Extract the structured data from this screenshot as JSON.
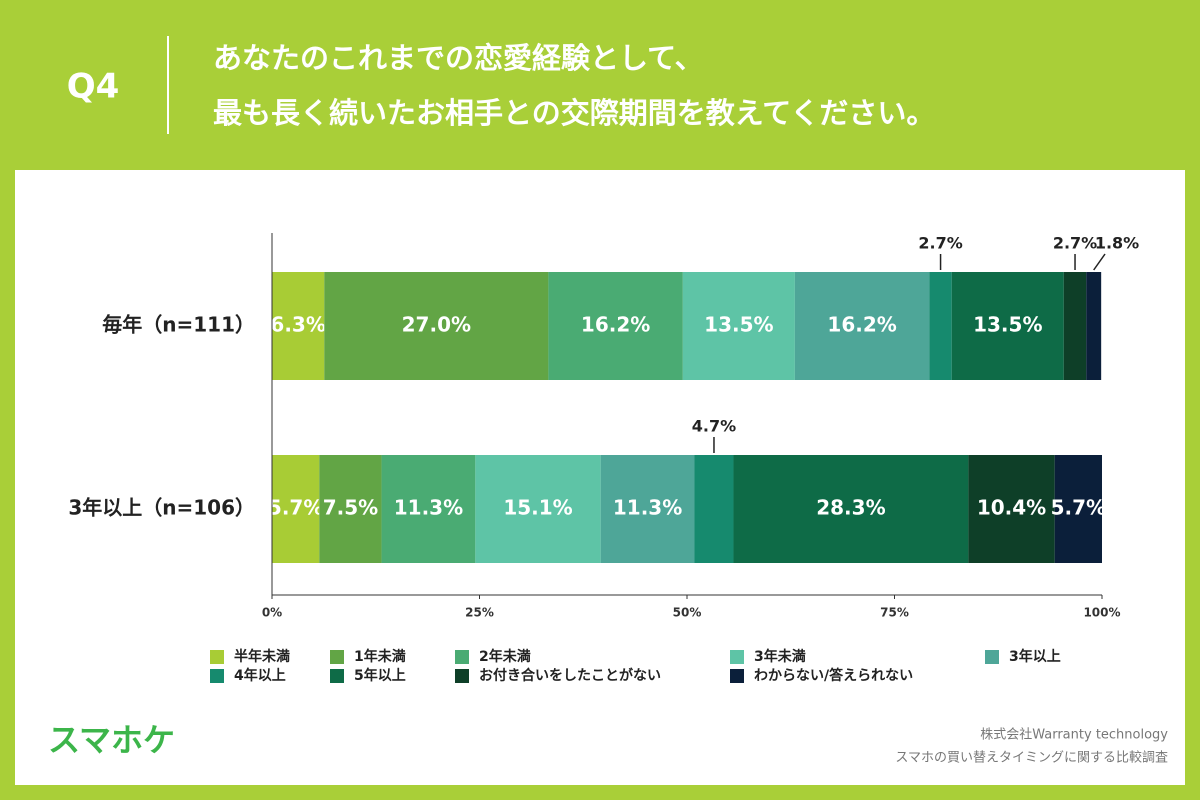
{
  "chart_data": {
    "type": "bar",
    "orientation": "horizontal",
    "stacked": true,
    "question": "Q4",
    "title": [
      "あなたのこれまでの恋愛経験として、",
      "最も長く続いたお相手との交際期間を教えてください。"
    ],
    "categories": [
      "毎年（n=111）",
      "3年以上（n=106）"
    ],
    "series": [
      {
        "name": "半年未満",
        "color": "#a8cc35",
        "values": [
          6.3,
          5.7
        ],
        "value_labels": [
          "6.3%",
          "5.7%"
        ]
      },
      {
        "name": "1年未満",
        "color": "#62a545",
        "values": [
          27.0,
          7.5
        ],
        "value_labels": [
          "27.0%",
          "7.5%"
        ]
      },
      {
        "name": "2年未満",
        "color": "#4aab73",
        "values": [
          16.2,
          11.3
        ],
        "value_labels": [
          "16.2%",
          "11.3%"
        ]
      },
      {
        "name": "3年未満",
        "color": "#5ec4a6",
        "values": [
          13.5,
          15.1
        ],
        "value_labels": [
          "13.5%",
          "15.1%"
        ]
      },
      {
        "name": "3年以上",
        "color": "#4ea698",
        "values": [
          16.2,
          11.3
        ],
        "value_labels": [
          "16.2%",
          "11.3%"
        ]
      },
      {
        "name": "4年以上",
        "color": "#168a6e",
        "values": [
          2.7,
          4.7
        ],
        "value_labels": [
          "2.7%",
          "4.7%"
        ]
      },
      {
        "name": "5年以上",
        "color": "#0e6b47",
        "values": [
          13.5,
          28.3
        ],
        "value_labels": [
          "13.5%",
          "28.3%"
        ]
      },
      {
        "name": "お付き合いをしたことがない",
        "color": "#0e3f28",
        "values": [
          2.7,
          10.4
        ],
        "value_labels": [
          "2.7%",
          "10.4%"
        ]
      },
      {
        "name": "わからない/答えられない",
        "color": "#0b1f3a",
        "values": [
          1.8,
          5.7
        ],
        "value_labels": [
          "1.8%",
          "5.7%"
        ]
      }
    ],
    "xlim": [
      0,
      100
    ],
    "xticks": [
      {
        "value": 0,
        "label": "0%"
      },
      {
        "value": 25,
        "label": "25%"
      },
      {
        "value": 50,
        "label": "50%"
      },
      {
        "value": 75,
        "label": "75%"
      },
      {
        "value": 100,
        "label": "100%"
      }
    ],
    "logo": "スマホケ",
    "credits": [
      "株式会社Warranty technology",
      "スマホの買い替えタイミングに関する比較調査"
    ]
  }
}
